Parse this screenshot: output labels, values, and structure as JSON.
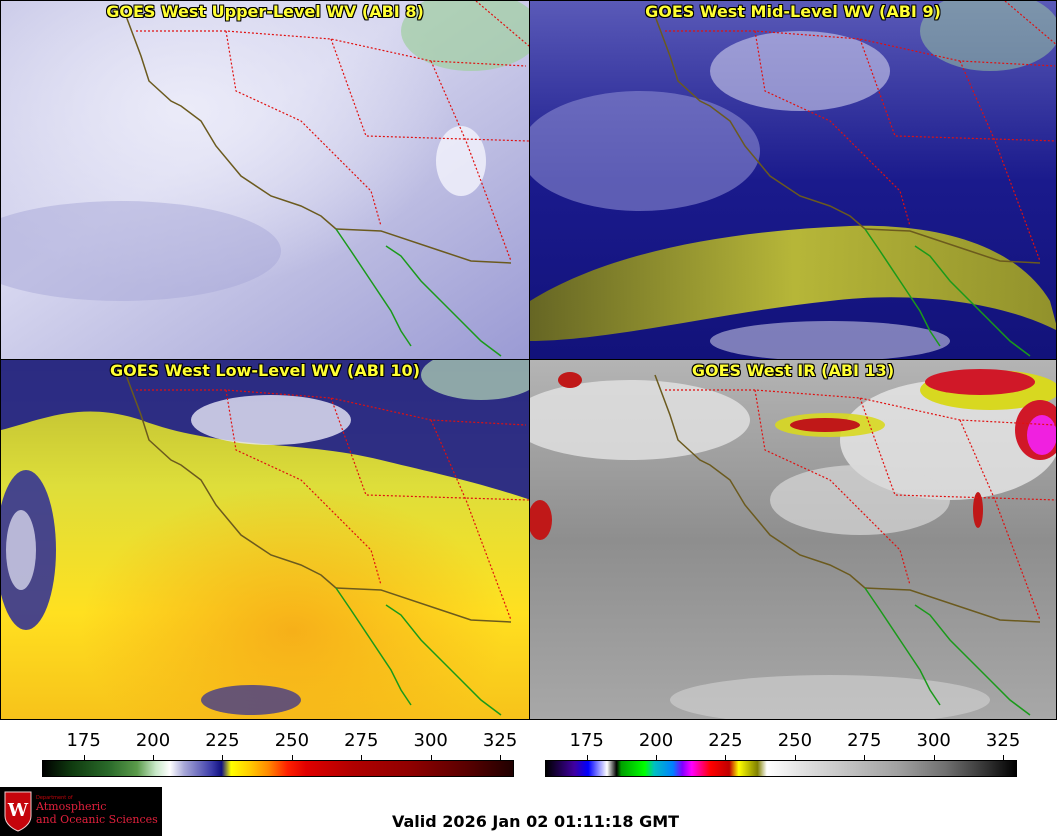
{
  "panels": [
    {
      "id": "upper",
      "title": "GOES West Upper-Level WV (ABI 8)"
    },
    {
      "id": "mid",
      "title": "GOES West Mid-Level WV (ABI 9)"
    },
    {
      "id": "low",
      "title": "GOES West Low-Level WV (ABI 10)"
    },
    {
      "id": "ir",
      "title": "GOES West IR (ABI 13)"
    }
  ],
  "colorbars": {
    "wv": {
      "ticks": [
        "175",
        "200",
        "225",
        "250",
        "275",
        "300",
        "325"
      ],
      "range": [
        160,
        330
      ]
    },
    "ir": {
      "ticks": [
        "175",
        "200",
        "225",
        "250",
        "275",
        "300",
        "325"
      ],
      "range": [
        160,
        330
      ]
    }
  },
  "logo": {
    "dept": "Department of",
    "line1": "Atmospheric",
    "line2": "and Oceanic Sciences",
    "seal_letter": "W"
  },
  "valid_time": "Valid 2026 Jan 02 01:11:18 GMT",
  "colors": {
    "coastline": "#6b5a1e",
    "mexico_coast": "#1a9a1a",
    "state_borders": "#e01010",
    "title_text": "#ffff33",
    "logo_red": "#c5050c"
  }
}
